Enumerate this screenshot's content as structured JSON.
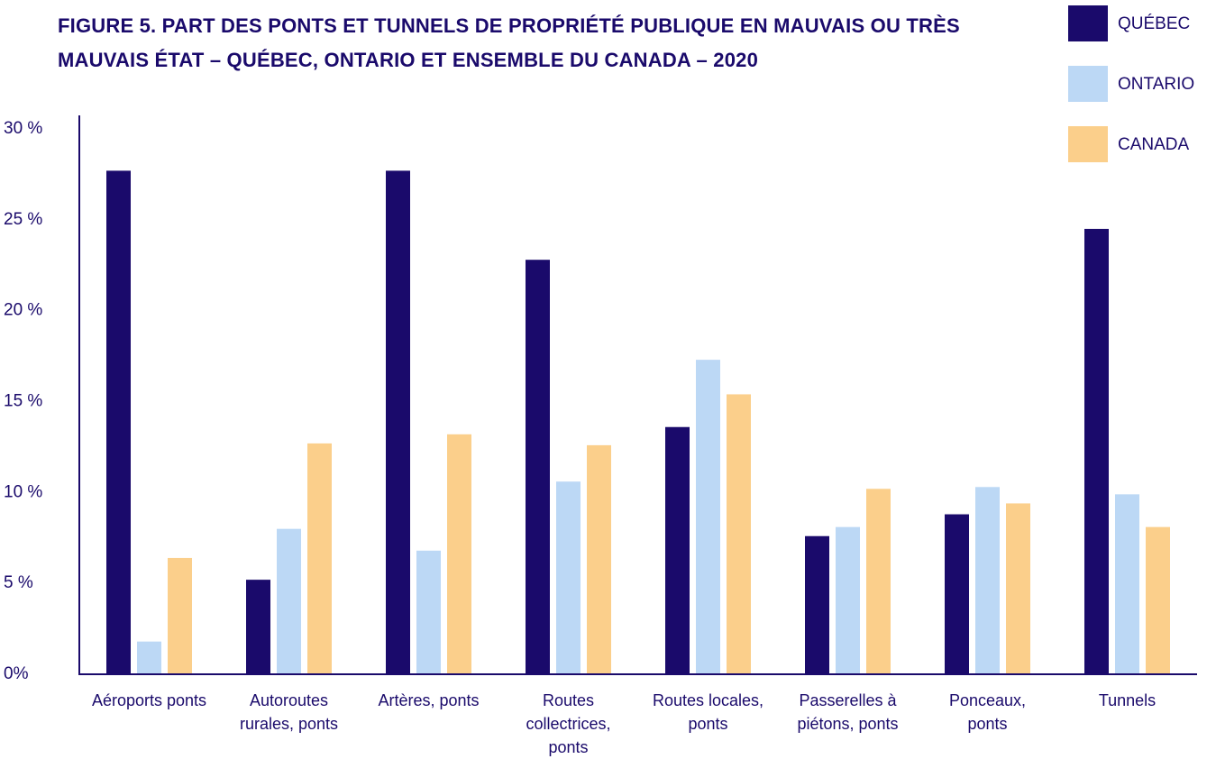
{
  "chart_data": {
    "type": "bar",
    "title": "FIGURE 5. PART DES PONTS ET TUNNELS DE PROPRIÉTÉ PUBLIQUE EN MAUVAIS OU TRÈS MAUVAIS ÉTAT – QUÉBEC, ONTARIO ET ENSEMBLE DU CANADA – 2020",
    "categories": [
      "Aéroports ponts",
      "Autoroutes rurales, ponts",
      "Artères, ponts",
      "Routes collectrices, ponts",
      "Routes locales, ponts",
      "Passerelles à piétons, ponts",
      "Ponceaux, ponts",
      "Tunnels"
    ],
    "series": [
      {
        "name": "QUÉBEC",
        "color": "#1a0a6b",
        "values": [
          27.7,
          5.2,
          27.7,
          22.8,
          13.6,
          7.6,
          8.8,
          24.5
        ]
      },
      {
        "name": "ONTARIO",
        "color": "#bcd8f5",
        "values": [
          1.8,
          8.0,
          6.8,
          10.6,
          17.3,
          8.1,
          10.3,
          9.9
        ]
      },
      {
        "name": "CANADA",
        "color": "#fbcf8b",
        "values": [
          6.4,
          12.7,
          13.2,
          12.6,
          15.4,
          10.2,
          9.4,
          8.1
        ]
      }
    ],
    "ylim": [
      0,
      30
    ],
    "yticks": [
      {
        "value": 0,
        "label": "0%"
      },
      {
        "value": 5,
        "label": "5 %"
      },
      {
        "value": 10,
        "label": "10 %"
      },
      {
        "value": 15,
        "label": "15 %"
      },
      {
        "value": 20,
        "label": "20 %"
      },
      {
        "value": 25,
        "label": "25 %"
      },
      {
        "value": 30,
        "label": "30 %"
      }
    ],
    "legend": "top-right",
    "grid": false
  }
}
